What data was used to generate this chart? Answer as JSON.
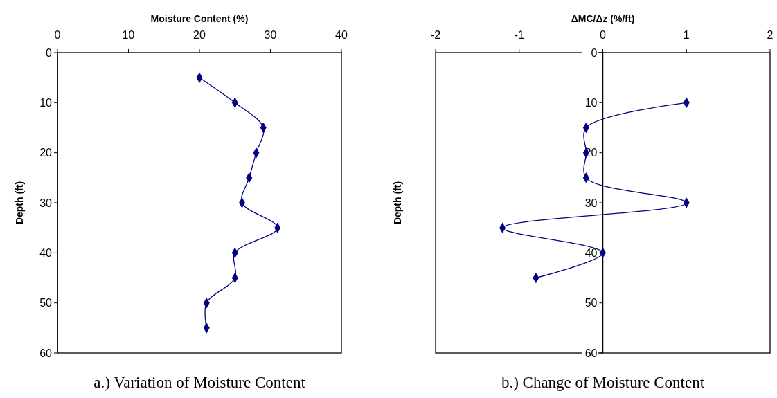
{
  "chart_data": [
    {
      "type": "line",
      "title": "a.) Variation of Moisture Content",
      "xlabel": "Moisture Content (%)",
      "ylabel": "Depth (ft)",
      "xlim": [
        0,
        40
      ],
      "xticks": [
        0,
        10,
        20,
        30,
        40
      ],
      "ylim": [
        60,
        0
      ],
      "yticks": [
        0,
        10,
        20,
        30,
        40,
        50,
        60
      ],
      "marker": "diamond",
      "grid": false,
      "series": [
        {
          "color": "#000080",
          "x": [
            20,
            25,
            29,
            28,
            27,
            26,
            31,
            25,
            25,
            21,
            21
          ],
          "values": [
            5,
            10,
            15,
            20,
            25,
            30,
            35,
            40,
            45,
            50,
            55
          ]
        }
      ]
    },
    {
      "type": "line",
      "title": "b.) Change of Moisture Content",
      "xlabel": "ΔMC/Δz (%/ft)",
      "ylabel": "Depth (ft)",
      "xlim": [
        -2,
        2
      ],
      "xticks": [
        -2,
        -1,
        0,
        1,
        2
      ],
      "ylim": [
        60,
        0
      ],
      "yticks": [
        0,
        10,
        20,
        30,
        40,
        50,
        60
      ],
      "marker": "diamond",
      "grid": false,
      "series": [
        {
          "color": "#000080",
          "x": [
            1,
            -0.2,
            -0.2,
            -0.2,
            1,
            -1.2,
            0,
            -0.8
          ],
          "values": [
            10,
            15,
            20,
            25,
            30,
            35,
            40,
            45
          ]
        }
      ]
    }
  ]
}
